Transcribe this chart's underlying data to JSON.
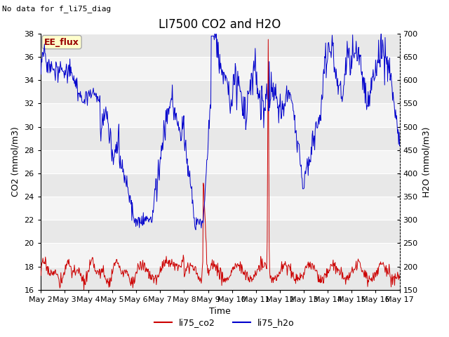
{
  "title": "LI7500 CO2 and H2O",
  "top_left_text": "No data for f_li75_diag",
  "annotation_text": "EE_flux",
  "xlabel": "Time",
  "ylabel_left": "CO2 (mmol/m3)",
  "ylabel_right": "H2O (mmol/m3)",
  "co2_ylim": [
    16,
    38
  ],
  "h2o_ylim": [
    150,
    700
  ],
  "co2_yticks": [
    16,
    18,
    20,
    22,
    24,
    26,
    28,
    30,
    32,
    34,
    36,
    38
  ],
  "h2o_yticks": [
    150,
    200,
    250,
    300,
    350,
    400,
    450,
    500,
    550,
    600,
    650,
    700
  ],
  "xtick_labels": [
    "May 2",
    "May 3",
    "May 4",
    "May 5",
    "May 6",
    "May 7",
    "May 8",
    "May 9",
    "May 10",
    "May 11",
    "May 12",
    "May 13",
    "May 14",
    "May 15",
    "May 16",
    "May 17"
  ],
  "legend_labels": [
    "li75_co2",
    "li75_h2o"
  ],
  "co2_color": "#cc0000",
  "h2o_color": "#0000cc",
  "fig_bg_color": "#ffffff",
  "band_colors": [
    "#e8e8e8",
    "#f4f4f4"
  ],
  "title_fontsize": 12,
  "label_fontsize": 9,
  "tick_fontsize": 8,
  "annotation_fontsize": 9
}
